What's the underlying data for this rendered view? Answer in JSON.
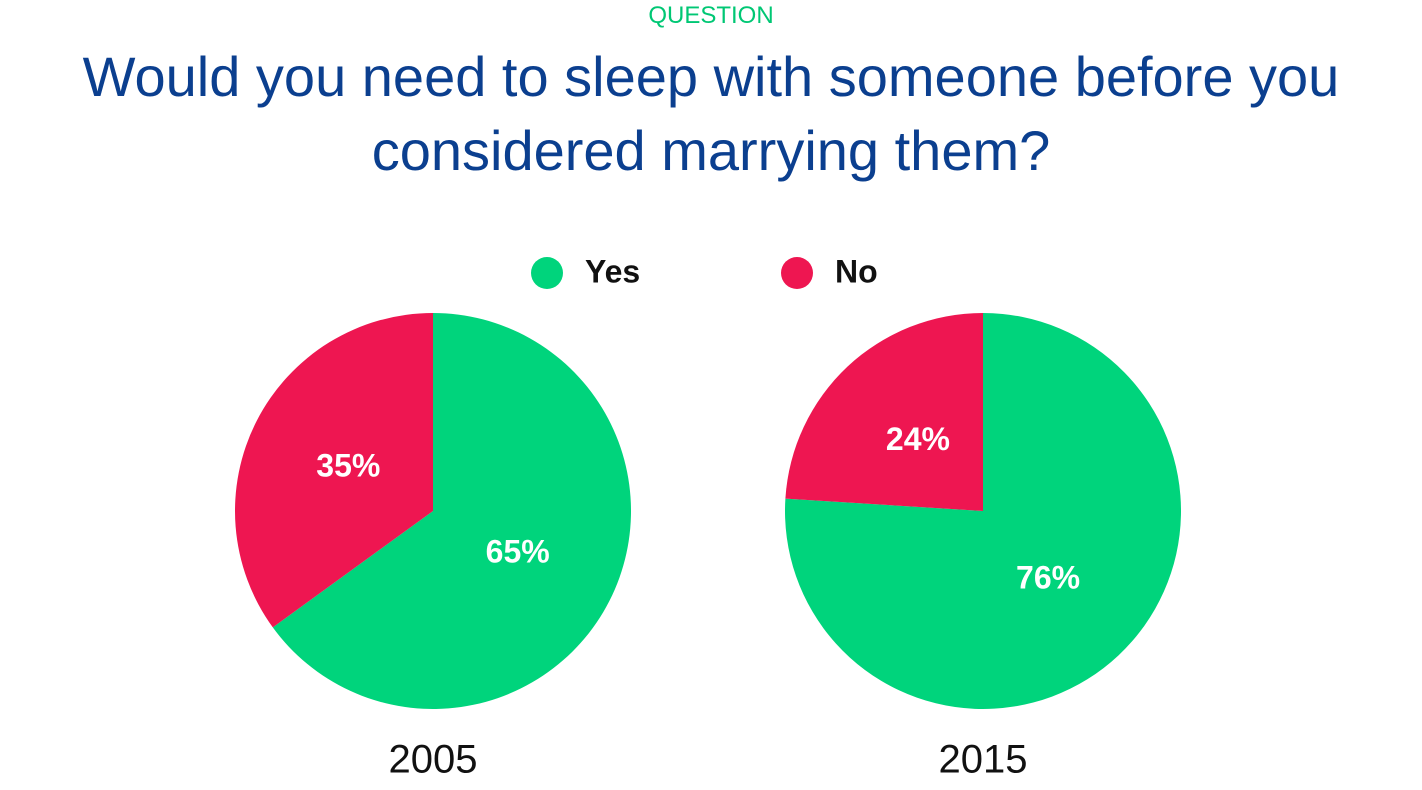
{
  "header": {
    "kicker": "QUESTION",
    "title": "Would you need to sleep with someone before you considered marrying them?"
  },
  "chart_data": [
    {
      "type": "pie",
      "title": "2005",
      "categories": [
        "Yes",
        "No"
      ],
      "values": [
        65,
        35
      ],
      "value_labels": [
        "65%",
        "35%"
      ],
      "colors": [
        "#00d47c",
        "#ee1651"
      ]
    },
    {
      "type": "pie",
      "title": "2015",
      "categories": [
        "Yes",
        "No"
      ],
      "values": [
        76,
        24
      ],
      "value_labels": [
        "76%",
        "24%"
      ],
      "colors": [
        "#00d47c",
        "#ee1651"
      ]
    }
  ]
}
